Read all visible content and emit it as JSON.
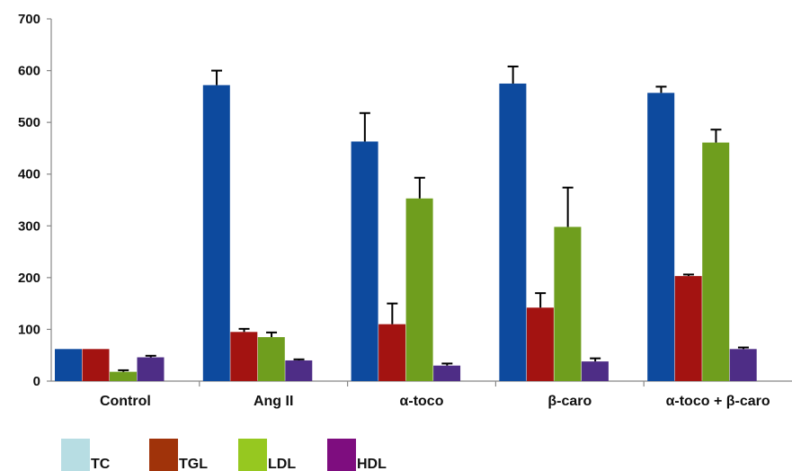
{
  "chart_data": {
    "type": "bar",
    "title": "",
    "xlabel": "",
    "ylabel": "",
    "ylim": [
      0,
      700
    ],
    "yticks": [
      0,
      100,
      200,
      300,
      400,
      500,
      600,
      700
    ],
    "grid": false,
    "legend_position": "bottom",
    "categories": [
      "Control",
      "Ang II",
      "α-toco",
      "β-caro",
      "α-toco + β-caro"
    ],
    "series": [
      {
        "name": "TC",
        "bar_color": "#0D4A9E",
        "legend_color": "#B7DDE3",
        "values": [
          62,
          572,
          463,
          575,
          557
        ],
        "errors": [
          0,
          28,
          55,
          33,
          12
        ]
      },
      {
        "name": "TGL",
        "bar_color": "#A31311",
        "legend_color": "#A0330A",
        "values": [
          62,
          95,
          110,
          142,
          203
        ],
        "errors": [
          0,
          6,
          40,
          28,
          3
        ]
      },
      {
        "name": "LDL",
        "bar_color": "#6F9E1E",
        "legend_color": "#96C820",
        "values": [
          18,
          85,
          353,
          298,
          461
        ],
        "errors": [
          3,
          9,
          40,
          76,
          25
        ]
      },
      {
        "name": "HDL",
        "bar_color": "#4E2D86",
        "legend_color": "#7E0D7F",
        "values": [
          46,
          40,
          30,
          38,
          62
        ],
        "errors": [
          3,
          2,
          4,
          6,
          3
        ]
      }
    ]
  }
}
